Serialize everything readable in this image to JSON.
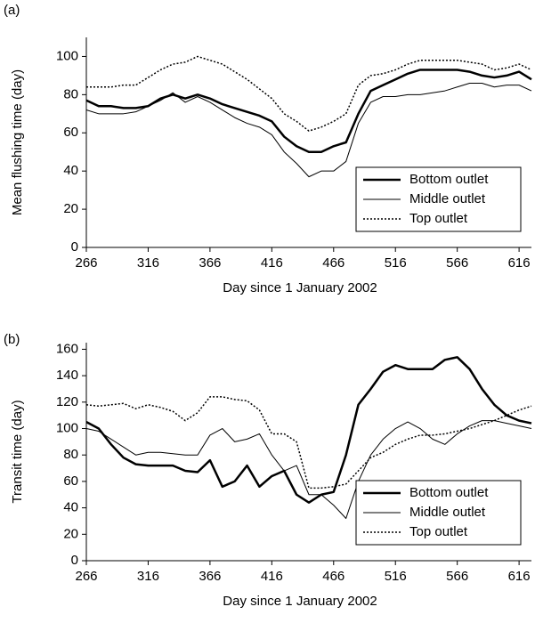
{
  "chart_data": [
    {
      "type": "line",
      "panel_label": "(a)",
      "x_label": "Day since 1 January 2002",
      "y_label": "Mean flushing time (day)",
      "x": [
        266,
        276,
        286,
        296,
        306,
        316,
        326,
        336,
        346,
        356,
        366,
        376,
        386,
        396,
        406,
        416,
        426,
        436,
        446,
        456,
        466,
        476,
        486,
        496,
        506,
        516,
        526,
        536,
        546,
        556,
        566,
        576,
        586,
        596,
        606,
        616,
        626
      ],
      "series": [
        {
          "name": "Bottom outlet",
          "color": "#000000",
          "line_width": 2.5,
          "dash": "none",
          "values": [
            77,
            74,
            74,
            73,
            73,
            74,
            78,
            80,
            78,
            80,
            78,
            75,
            73,
            71,
            69,
            66,
            58,
            53,
            50,
            50,
            53,
            55,
            70,
            82,
            85,
            88,
            91,
            93,
            93,
            93,
            93,
            92,
            90,
            89,
            90,
            92,
            88
          ]
        },
        {
          "name": "Middle outlet",
          "color": "#000000",
          "line_width": 1,
          "dash": "none",
          "values": [
            72,
            70,
            70,
            70,
            71,
            74,
            77,
            81,
            76,
            79,
            76,
            72,
            68,
            65,
            63,
            59,
            50,
            44,
            37,
            40,
            40,
            45,
            65,
            76,
            79,
            79,
            80,
            80,
            81,
            82,
            84,
            86,
            86,
            84,
            85,
            85,
            82
          ]
        },
        {
          "name": "Top outlet",
          "color": "#000000",
          "line_width": 1.5,
          "dash": "2 2",
          "values": [
            84,
            84,
            84,
            85,
            85,
            89,
            93,
            96,
            97,
            100,
            98,
            96,
            92,
            88,
            83,
            78,
            70,
            66,
            61,
            63,
            66,
            70,
            85,
            90,
            91,
            93,
            96,
            98,
            98,
            98,
            98,
            97,
            96,
            93,
            94,
            96,
            93
          ]
        }
      ],
      "xlim": [
        266,
        626
      ],
      "xticks": [
        266,
        316,
        366,
        416,
        466,
        516,
        566,
        616
      ],
      "ylim": [
        0,
        110
      ],
      "yticks": [
        0,
        20,
        40,
        60,
        80,
        100
      ],
      "legend": "lower right"
    },
    {
      "type": "line",
      "panel_label": "(b)",
      "x_label": "Day since 1 January 2002",
      "y_label": "Transit time (day)",
      "x": [
        266,
        276,
        286,
        296,
        306,
        316,
        326,
        336,
        346,
        356,
        366,
        376,
        386,
        396,
        406,
        416,
        426,
        436,
        446,
        456,
        466,
        476,
        486,
        496,
        506,
        516,
        526,
        536,
        546,
        556,
        566,
        576,
        586,
        596,
        606,
        616,
        626
      ],
      "series": [
        {
          "name": "Bottom outlet",
          "color": "#000000",
          "line_width": 2.5,
          "dash": "none",
          "values": [
            105,
            100,
            88,
            78,
            73,
            72,
            72,
            72,
            68,
            67,
            76,
            56,
            60,
            72,
            56,
            64,
            68,
            50,
            44,
            50,
            52,
            80,
            118,
            130,
            143,
            148,
            145,
            145,
            145,
            152,
            154,
            145,
            130,
            118,
            110,
            106,
            104
          ]
        },
        {
          "name": "Middle outlet",
          "color": "#000000",
          "line_width": 1,
          "dash": "none",
          "values": [
            100,
            98,
            92,
            86,
            80,
            82,
            82,
            81,
            80,
            80,
            95,
            100,
            90,
            92,
            96,
            80,
            68,
            72,
            50,
            50,
            42,
            32,
            60,
            80,
            92,
            100,
            105,
            100,
            92,
            88,
            96,
            102,
            106,
            106,
            104,
            102,
            100
          ]
        },
        {
          "name": "Top outlet",
          "color": "#000000",
          "line_width": 1.5,
          "dash": "2 2",
          "values": [
            118,
            117,
            118,
            119,
            115,
            118,
            116,
            113,
            106,
            112,
            124,
            124,
            122,
            121,
            114,
            96,
            96,
            90,
            55,
            55,
            56,
            58,
            68,
            78,
            82,
            88,
            92,
            95,
            95,
            96,
            98,
            100,
            103,
            106,
            110,
            114,
            117
          ]
        }
      ],
      "xlim": [
        266,
        626
      ],
      "xticks": [
        266,
        316,
        366,
        416,
        466,
        516,
        566,
        616
      ],
      "ylim": [
        0,
        165
      ],
      "yticks": [
        0,
        20,
        40,
        60,
        80,
        100,
        120,
        140,
        160
      ],
      "legend": "lower right"
    }
  ]
}
